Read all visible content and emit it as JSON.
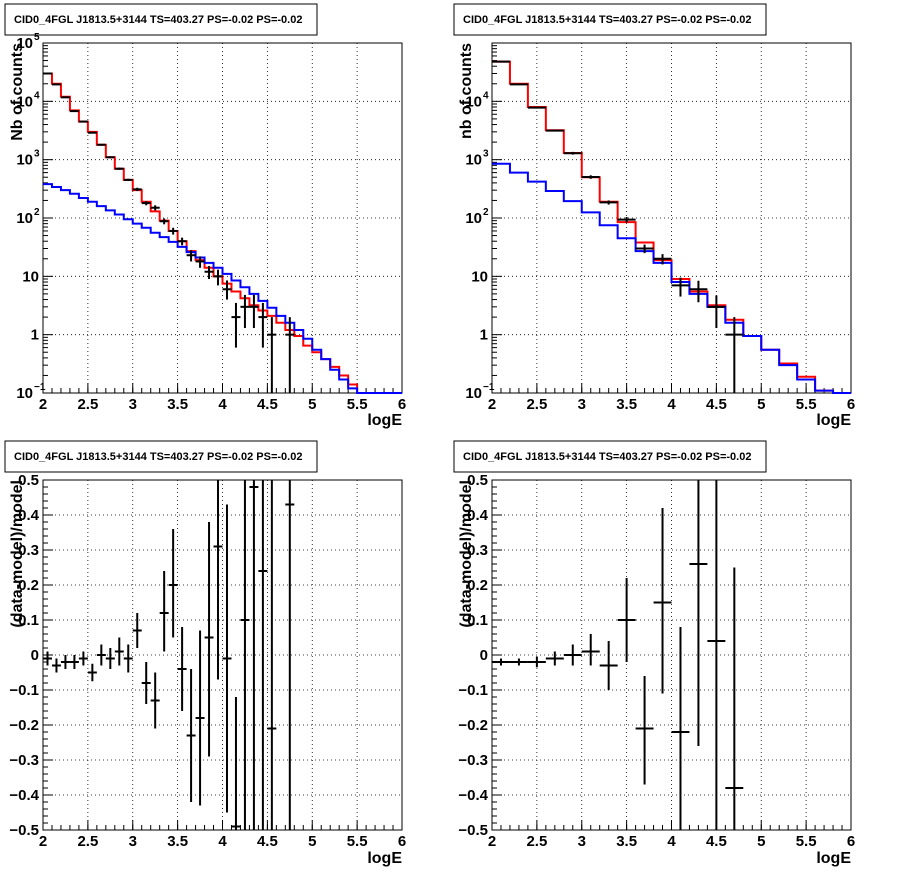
{
  "chart_data": [
    {
      "type": "histogram-log",
      "title": "CID0_4FGL J1813.5+3144 TS=403.27 PS=-0.02 PS=-0.02",
      "xlabel": "logE",
      "ylabel": "Nb of counts",
      "xlim": [
        2,
        6
      ],
      "ylim": [
        0.1,
        100000
      ],
      "yscale": "log",
      "grid": true,
      "x_ticks": [
        "2",
        "2.5",
        "3",
        "3.5",
        "4",
        "4.5",
        "5",
        "5.5",
        "6"
      ],
      "y_ticks": [
        {
          "value": 0.1,
          "label": "10",
          "sup": "−1"
        },
        {
          "value": 1,
          "label": "1",
          "sup": ""
        },
        {
          "value": 10,
          "label": "10",
          "sup": ""
        },
        {
          "value": 100,
          "label": "10",
          "sup": "2"
        },
        {
          "value": 1000,
          "label": "10",
          "sup": "3"
        },
        {
          "value": 10000,
          "label": "10",
          "sup": "4"
        },
        {
          "value": 100000,
          "label": "10",
          "sup": "5"
        }
      ],
      "bin_edges": [
        2.0,
        2.1,
        2.2,
        2.3,
        2.4,
        2.5,
        2.6,
        2.7,
        2.8,
        2.9,
        3.0,
        3.1,
        3.2,
        3.3,
        3.4,
        3.5,
        3.6,
        3.7,
        3.8,
        3.9,
        4.0,
        4.1,
        4.2,
        4.3,
        4.4,
        4.5,
        4.6,
        4.7,
        4.8,
        4.9,
        5.0,
        5.1,
        5.2,
        5.3,
        5.4,
        5.5,
        5.6,
        5.7,
        5.8,
        5.9,
        6.0
      ],
      "series": [
        {
          "color": "#ff0000",
          "kind": "step",
          "values": [
            30000,
            20000,
            12000,
            7000,
            4500,
            3000,
            1800,
            1100,
            700,
            450,
            300,
            190,
            130,
            90,
            60,
            40,
            27,
            19,
            14,
            10,
            7.5,
            5.5,
            4.2,
            3.2,
            2.6,
            2.1,
            1.6,
            1.2,
            0.95,
            0.65,
            0.5,
            0.38,
            0.28,
            0.2,
            0.14,
            0.1,
            0.1,
            0.1,
            0.1,
            0.1
          ]
        },
        {
          "color": "#0000ff",
          "kind": "step",
          "values": [
            380,
            340,
            300,
            260,
            220,
            190,
            160,
            135,
            115,
            95,
            80,
            68,
            56,
            47,
            39,
            32,
            26,
            21,
            17,
            14,
            11,
            8.5,
            6.5,
            5.0,
            3.8,
            2.9,
            2.1,
            1.6,
            1.2,
            0.85,
            0.55,
            0.38,
            0.25,
            0.17,
            0.12,
            0.1,
            0.1,
            0.1,
            0.1,
            0.1
          ]
        }
      ],
      "data_points": [
        {
          "x": 2.05,
          "y": 30000,
          "lo": 29600,
          "hi": 30400
        },
        {
          "x": 2.15,
          "y": 19500,
          "lo": 19200,
          "hi": 19800
        },
        {
          "x": 2.25,
          "y": 11700,
          "lo": 11500,
          "hi": 11900
        },
        {
          "x": 2.35,
          "y": 6800,
          "lo": 6650,
          "hi": 6950
        },
        {
          "x": 2.45,
          "y": 4500,
          "lo": 4400,
          "hi": 4600
        },
        {
          "x": 2.55,
          "y": 2900,
          "lo": 2820,
          "hi": 2980
        },
        {
          "x": 2.65,
          "y": 1800,
          "lo": 1740,
          "hi": 1860
        },
        {
          "x": 2.75,
          "y": 1100,
          "lo": 1060,
          "hi": 1140
        },
        {
          "x": 2.85,
          "y": 700,
          "lo": 670,
          "hi": 730
        },
        {
          "x": 2.95,
          "y": 450,
          "lo": 430,
          "hi": 470
        },
        {
          "x": 3.05,
          "y": 310,
          "lo": 290,
          "hi": 330
        },
        {
          "x": 3.15,
          "y": 180,
          "lo": 165,
          "hi": 195
        },
        {
          "x": 3.25,
          "y": 150,
          "lo": 135,
          "hi": 165
        },
        {
          "x": 3.35,
          "y": 88,
          "lo": 78,
          "hi": 98
        },
        {
          "x": 3.45,
          "y": 60,
          "lo": 52,
          "hi": 68
        },
        {
          "x": 3.55,
          "y": 40,
          "lo": 34,
          "hi": 46
        },
        {
          "x": 3.65,
          "y": 23,
          "lo": 18,
          "hi": 28
        },
        {
          "x": 3.75,
          "y": 18,
          "lo": 14,
          "hi": 22
        },
        {
          "x": 3.85,
          "y": 12,
          "lo": 9,
          "hi": 15
        },
        {
          "x": 3.95,
          "y": 10,
          "lo": 7,
          "hi": 13
        },
        {
          "x": 4.05,
          "y": 6,
          "lo": 4,
          "hi": 8.5
        },
        {
          "x": 4.15,
          "y": 2,
          "lo": 0.6,
          "hi": 3.5
        },
        {
          "x": 4.25,
          "y": 3,
          "lo": 1.3,
          "hi": 4.8
        },
        {
          "x": 4.35,
          "y": 3,
          "lo": 1.3,
          "hi": 4.8
        },
        {
          "x": 4.45,
          "y": 2,
          "lo": 0.6,
          "hi": 3.5
        },
        {
          "x": 4.55,
          "y": 1,
          "lo": 0.1,
          "hi": 2.0
        },
        {
          "x": 4.75,
          "y": 1,
          "lo": 0.1,
          "hi": 2.0
        }
      ]
    },
    {
      "type": "histogram-log",
      "title": "CID0_4FGL J1813.5+3144 TS=403.27 PS=-0.02 PS=-0.02",
      "xlabel": "logE",
      "ylabel": "nb of counts",
      "xlim": [
        2,
        6
      ],
      "ylim": [
        0.1,
        100000
      ],
      "yscale": "log",
      "grid": true,
      "x_ticks": [
        "2",
        "2.5",
        "3",
        "3.5",
        "4",
        "4.5",
        "5",
        "5.5",
        "6"
      ],
      "y_ticks": [
        {
          "value": 0.1,
          "label": "10",
          "sup": "−1"
        },
        {
          "value": 1,
          "label": "1",
          "sup": ""
        },
        {
          "value": 10,
          "label": "10",
          "sup": ""
        },
        {
          "value": 100,
          "label": "10",
          "sup": "2"
        },
        {
          "value": 1000,
          "label": "10",
          "sup": "3"
        },
        {
          "value": 10000,
          "label": "10",
          "sup": "4"
        }
      ],
      "bin_edges": [
        2.0,
        2.2,
        2.4,
        2.6,
        2.8,
        3.0,
        3.2,
        3.4,
        3.6,
        3.8,
        4.0,
        4.2,
        4.4,
        4.6,
        4.8,
        5.0,
        5.2,
        5.4,
        5.6,
        5.8,
        6.0
      ],
      "series": [
        {
          "color": "#ff0000",
          "kind": "step",
          "values": [
            48000,
            20000,
            8000,
            3200,
            1300,
            500,
            190,
            85,
            38,
            19,
            9,
            5.5,
            3.2,
            1.8,
            0.95,
            0.55,
            0.32,
            0.19,
            0.11,
            0.1
          ]
        },
        {
          "color": "#0000ff",
          "kind": "step",
          "values": [
            850,
            600,
            420,
            290,
            195,
            125,
            75,
            45,
            27,
            17,
            8,
            5.0,
            3.0,
            1.6,
            0.95,
            0.55,
            0.3,
            0.17,
            0.11,
            0.1
          ]
        }
      ],
      "data_points": [
        {
          "x": 2.1,
          "y": 48000,
          "lo": 47600,
          "hi": 48400
        },
        {
          "x": 2.3,
          "y": 19500,
          "lo": 19200,
          "hi": 19800
        },
        {
          "x": 2.5,
          "y": 7800,
          "lo": 7620,
          "hi": 7980
        },
        {
          "x": 2.7,
          "y": 3150,
          "lo": 3040,
          "hi": 3260
        },
        {
          "x": 2.9,
          "y": 1290,
          "lo": 1220,
          "hi": 1360
        },
        {
          "x": 3.1,
          "y": 505,
          "lo": 470,
          "hi": 540
        },
        {
          "x": 3.3,
          "y": 185,
          "lo": 170,
          "hi": 200
        },
        {
          "x": 3.5,
          "y": 94,
          "lo": 84,
          "hi": 104
        },
        {
          "x": 3.7,
          "y": 30,
          "lo": 25,
          "hi": 35
        },
        {
          "x": 3.9,
          "y": 20,
          "lo": 16,
          "hi": 24
        },
        {
          "x": 4.1,
          "y": 7,
          "lo": 4.5,
          "hi": 9.5
        },
        {
          "x": 4.3,
          "y": 6,
          "lo": 3.6,
          "hi": 8.4
        },
        {
          "x": 4.5,
          "y": 3,
          "lo": 1.3,
          "hi": 4.7
        },
        {
          "x": 4.7,
          "y": 1,
          "lo": 0.1,
          "hi": 2.0
        }
      ]
    },
    {
      "type": "scatter-errorbars",
      "title": "CID0_4FGL J1813.5+3144 TS=403.27 PS=-0.02 PS=-0.02",
      "xlabel": "logE",
      "ylabel": "(data-model)/model",
      "xlim": [
        2,
        6
      ],
      "ylim": [
        -0.5,
        0.5
      ],
      "grid": true,
      "x_ticks": [
        "2",
        "2.5",
        "3",
        "3.5",
        "4",
        "4.5",
        "5",
        "5.5",
        "6"
      ],
      "y_ticks": [
        "−0.5",
        "−0.4",
        "−0.3",
        "−0.2",
        "−0.1",
        "0",
        "0.1",
        "0.2",
        "0.3",
        "0.4",
        "0.5"
      ],
      "bin_half_width": 0.05,
      "data_points": [
        {
          "x": 2.05,
          "y": -0.01,
          "lo": -0.03,
          "hi": 0.01
        },
        {
          "x": 2.15,
          "y": -0.03,
          "lo": -0.05,
          "hi": -0.01
        },
        {
          "x": 2.25,
          "y": -0.02,
          "lo": -0.04,
          "hi": 0.0
        },
        {
          "x": 2.35,
          "y": -0.02,
          "lo": -0.04,
          "hi": 0.0
        },
        {
          "x": 2.45,
          "y": -0.01,
          "lo": -0.03,
          "hi": 0.01
        },
        {
          "x": 2.55,
          "y": -0.05,
          "lo": -0.075,
          "hi": -0.025
        },
        {
          "x": 2.65,
          "y": 0.0,
          "lo": -0.03,
          "hi": 0.03
        },
        {
          "x": 2.75,
          "y": -0.01,
          "lo": -0.04,
          "hi": 0.02
        },
        {
          "x": 2.85,
          "y": 0.01,
          "lo": -0.03,
          "hi": 0.05
        },
        {
          "x": 2.95,
          "y": -0.01,
          "lo": -0.05,
          "hi": 0.03
        },
        {
          "x": 3.05,
          "y": 0.07,
          "lo": 0.02,
          "hi": 0.12
        },
        {
          "x": 3.15,
          "y": -0.08,
          "lo": -0.14,
          "hi": -0.02
        },
        {
          "x": 3.25,
          "y": -0.13,
          "lo": -0.21,
          "hi": -0.05
        },
        {
          "x": 3.35,
          "y": 0.12,
          "lo": 0.01,
          "hi": 0.24
        },
        {
          "x": 3.45,
          "y": 0.2,
          "lo": 0.05,
          "hi": 0.36
        },
        {
          "x": 3.55,
          "y": -0.04,
          "lo": -0.16,
          "hi": 0.08
        },
        {
          "x": 3.65,
          "y": -0.23,
          "lo": -0.42,
          "hi": -0.04
        },
        {
          "x": 3.75,
          "y": -0.18,
          "lo": -0.43,
          "hi": 0.07
        },
        {
          "x": 3.85,
          "y": 0.05,
          "lo": -0.29,
          "hi": 0.38
        },
        {
          "x": 3.95,
          "y": 0.31,
          "lo": -0.07,
          "hi": 0.6
        },
        {
          "x": 4.05,
          "y": -0.01,
          "lo": -0.45,
          "hi": 0.43
        },
        {
          "x": 4.15,
          "y": -0.49,
          "lo": -0.6,
          "hi": -0.12
        },
        {
          "x": 4.25,
          "y": 0.1,
          "lo": -0.55,
          "hi": 0.6
        },
        {
          "x": 4.35,
          "y": 0.48,
          "lo": -0.6,
          "hi": 0.6
        },
        {
          "x": 4.45,
          "y": 0.24,
          "lo": -0.6,
          "hi": 0.6
        },
        {
          "x": 4.55,
          "y": -0.21,
          "lo": -0.6,
          "hi": 0.6
        },
        {
          "x": 4.75,
          "y": 0.43,
          "lo": -0.6,
          "hi": 0.6
        }
      ]
    },
    {
      "type": "scatter-errorbars",
      "title": "CID0_4FGL J1813.5+3144 TS=403.27 PS=-0.02 PS=-0.02",
      "xlabel": "logE",
      "ylabel": "(data-model)/model",
      "xlim": [
        2,
        6
      ],
      "ylim": [
        -0.5,
        0.5
      ],
      "grid": true,
      "x_ticks": [
        "2",
        "2.5",
        "3",
        "3.5",
        "4",
        "4.5",
        "5",
        "5.5",
        "6"
      ],
      "y_ticks": [
        "−0.5",
        "−0.4",
        "−0.3",
        "−0.2",
        "−0.1",
        "0",
        "0.1",
        "0.2",
        "0.3",
        "0.4",
        "0.5"
      ],
      "bin_half_width": 0.1,
      "data_points": [
        {
          "x": 2.1,
          "y": -0.02,
          "lo": -0.03,
          "hi": -0.01
        },
        {
          "x": 2.3,
          "y": -0.02,
          "lo": -0.03,
          "hi": -0.01
        },
        {
          "x": 2.5,
          "y": -0.02,
          "lo": -0.035,
          "hi": -0.005
        },
        {
          "x": 2.7,
          "y": -0.01,
          "lo": -0.03,
          "hi": 0.01
        },
        {
          "x": 2.9,
          "y": 0.0,
          "lo": -0.03,
          "hi": 0.03
        },
        {
          "x": 3.1,
          "y": 0.01,
          "lo": -0.03,
          "hi": 0.06
        },
        {
          "x": 3.3,
          "y": -0.03,
          "lo": -0.1,
          "hi": 0.04
        },
        {
          "x": 3.5,
          "y": 0.1,
          "lo": -0.02,
          "hi": 0.22
        },
        {
          "x": 3.7,
          "y": -0.21,
          "lo": -0.37,
          "hi": -0.06
        },
        {
          "x": 3.9,
          "y": 0.15,
          "lo": -0.11,
          "hi": 0.42
        },
        {
          "x": 4.1,
          "y": -0.22,
          "lo": -0.6,
          "hi": 0.08
        },
        {
          "x": 4.3,
          "y": 0.26,
          "lo": -0.26,
          "hi": 0.6
        },
        {
          "x": 4.5,
          "y": 0.04,
          "lo": -0.6,
          "hi": 0.6
        },
        {
          "x": 4.7,
          "y": -0.38,
          "lo": -0.6,
          "hi": 0.25
        }
      ]
    }
  ]
}
